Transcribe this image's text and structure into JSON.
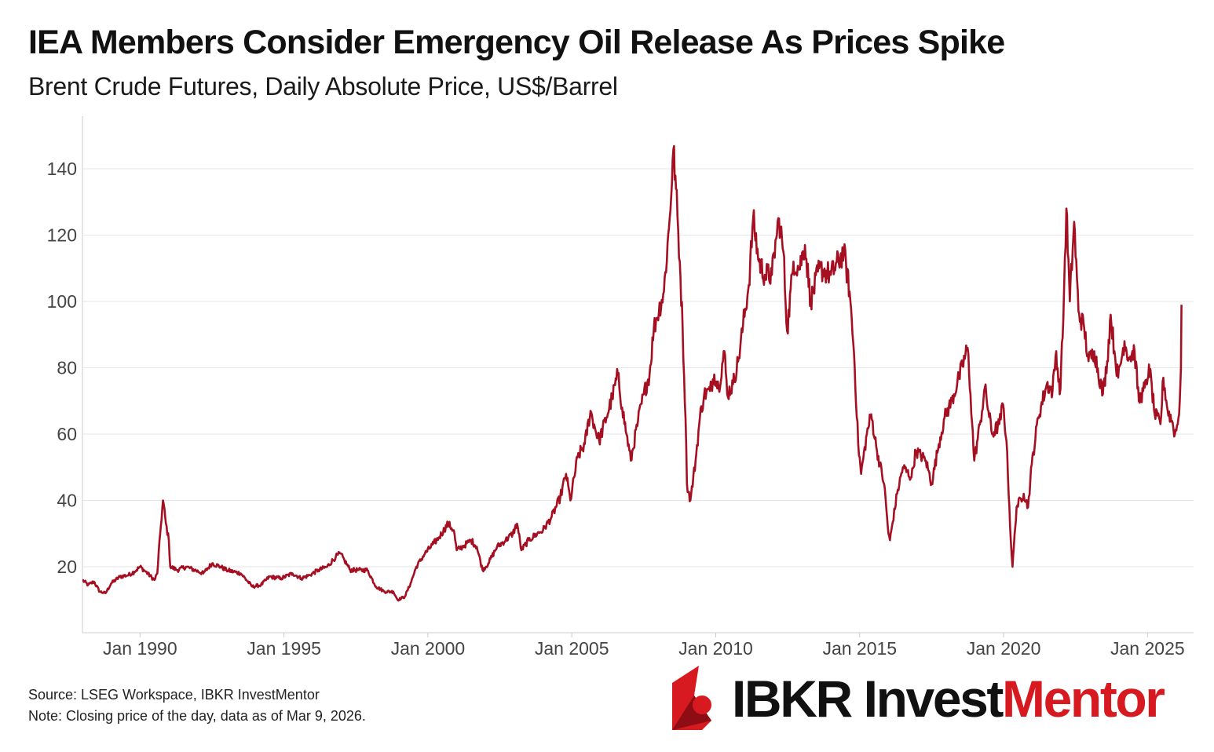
{
  "header": {
    "title": "IEA Members Consider Emergency Oil Release As Prices Spike",
    "subtitle": "Brent Crude Futures, Daily Absolute Price, US$/Barrel"
  },
  "footer": {
    "source": "Source: LSEG Workspace, IBKR InvestMentor",
    "note": "Note: Closing price of the day, data as of Mar 9, 2026."
  },
  "logo": {
    "brand_dark": "IBKR Invest",
    "brand_red": "Mentor"
  },
  "colors": {
    "series": "#a50f22",
    "grid": "#e6e6e6",
    "axis": "#cccccc",
    "brand_red": "#d71920"
  },
  "chart_data": {
    "type": "line",
    "title": "IEA Members Consider Emergency Oil Release As Prices Spike",
    "subtitle": "Brent Crude Futures, Daily Absolute Price, US$/Barrel",
    "xlabel": "",
    "ylabel": "",
    "xlim": [
      1988.0,
      2026.6
    ],
    "ylim": [
      0,
      150
    ],
    "yticks": [
      20,
      40,
      60,
      80,
      100,
      120,
      140
    ],
    "xticks": [
      {
        "x": 1990,
        "label": "Jan 1990"
      },
      {
        "x": 1995,
        "label": "Jan 1995"
      },
      {
        "x": 2000,
        "label": "Jan 2000"
      },
      {
        "x": 2005,
        "label": "Jan 2005"
      },
      {
        "x": 2010,
        "label": "Jan 2010"
      },
      {
        "x": 2015,
        "label": "Jan 2015"
      },
      {
        "x": 2020,
        "label": "Jan 2020"
      },
      {
        "x": 2025,
        "label": "Jan 2025"
      }
    ],
    "grid": true,
    "series": [
      {
        "name": "Brent Crude Futures",
        "points": [
          [
            1988.0,
            16
          ],
          [
            1988.2,
            14.5
          ],
          [
            1988.4,
            15.5
          ],
          [
            1988.6,
            12.5
          ],
          [
            1988.8,
            12
          ],
          [
            1989.0,
            15
          ],
          [
            1989.3,
            17
          ],
          [
            1989.6,
            17.5
          ],
          [
            1989.8,
            18.5
          ],
          [
            1990.0,
            20
          ],
          [
            1990.2,
            18.5
          ],
          [
            1990.5,
            16
          ],
          [
            1990.6,
            18
          ],
          [
            1990.7,
            30
          ],
          [
            1990.8,
            40
          ],
          [
            1990.9,
            33
          ],
          [
            1991.0,
            28
          ],
          [
            1991.05,
            20
          ],
          [
            1991.3,
            19
          ],
          [
            1991.6,
            20
          ],
          [
            1991.9,
            19
          ],
          [
            1992.2,
            18
          ],
          [
            1992.5,
            21
          ],
          [
            1992.8,
            20
          ],
          [
            1993.0,
            19
          ],
          [
            1993.5,
            18
          ],
          [
            1993.9,
            14
          ],
          [
            1994.2,
            14.5
          ],
          [
            1994.5,
            17
          ],
          [
            1994.9,
            16.5
          ],
          [
            1995.3,
            18
          ],
          [
            1995.6,
            16.5
          ],
          [
            1995.9,
            17.5
          ],
          [
            1996.2,
            19
          ],
          [
            1996.5,
            20
          ],
          [
            1996.8,
            23
          ],
          [
            1996.95,
            24
          ],
          [
            1997.1,
            22
          ],
          [
            1997.3,
            19
          ],
          [
            1997.6,
            19
          ],
          [
            1997.9,
            19
          ],
          [
            1998.2,
            14
          ],
          [
            1998.5,
            12.5
          ],
          [
            1998.8,
            12.5
          ],
          [
            1998.95,
            10
          ],
          [
            1999.2,
            11
          ],
          [
            1999.4,
            15
          ],
          [
            1999.6,
            20
          ],
          [
            1999.9,
            24
          ],
          [
            2000.2,
            27
          ],
          [
            2000.4,
            29
          ],
          [
            2000.7,
            33
          ],
          [
            2000.9,
            31
          ],
          [
            2001.0,
            25
          ],
          [
            2001.2,
            26
          ],
          [
            2001.5,
            28
          ],
          [
            2001.7,
            26
          ],
          [
            2001.9,
            19
          ],
          [
            2002.1,
            21
          ],
          [
            2002.4,
            26
          ],
          [
            2002.7,
            28
          ],
          [
            2002.95,
            30
          ],
          [
            2003.1,
            33
          ],
          [
            2003.25,
            25
          ],
          [
            2003.5,
            28
          ],
          [
            2003.8,
            30
          ],
          [
            2004.0,
            31
          ],
          [
            2004.3,
            35
          ],
          [
            2004.6,
            41
          ],
          [
            2004.8,
            48
          ],
          [
            2004.95,
            40
          ],
          [
            2005.2,
            53
          ],
          [
            2005.45,
            57
          ],
          [
            2005.65,
            67
          ],
          [
            2005.8,
            62
          ],
          [
            2005.95,
            58
          ],
          [
            2006.2,
            65
          ],
          [
            2006.4,
            71
          ],
          [
            2006.6,
            78
          ],
          [
            2006.75,
            68
          ],
          [
            2006.9,
            60
          ],
          [
            2007.05,
            52
          ],
          [
            2007.3,
            64
          ],
          [
            2007.5,
            72
          ],
          [
            2007.7,
            78
          ],
          [
            2007.85,
            92
          ],
          [
            2007.95,
            95
          ],
          [
            2008.2,
            103
          ],
          [
            2008.4,
            125
          ],
          [
            2008.53,
            146
          ],
          [
            2008.62,
            134
          ],
          [
            2008.75,
            112
          ],
          [
            2008.85,
            92
          ],
          [
            2008.95,
            65
          ],
          [
            2009.0,
            45
          ],
          [
            2009.12,
            40
          ],
          [
            2009.3,
            52
          ],
          [
            2009.45,
            65
          ],
          [
            2009.6,
            72
          ],
          [
            2009.8,
            73
          ],
          [
            2009.95,
            78
          ],
          [
            2010.1,
            74
          ],
          [
            2010.3,
            85
          ],
          [
            2010.4,
            72
          ],
          [
            2010.6,
            75
          ],
          [
            2010.8,
            83
          ],
          [
            2010.95,
            93
          ],
          [
            2011.15,
            105
          ],
          [
            2011.3,
            125
          ],
          [
            2011.5,
            112
          ],
          [
            2011.7,
            108
          ],
          [
            2011.95,
            108
          ],
          [
            2012.1,
            119
          ],
          [
            2012.2,
            125
          ],
          [
            2012.35,
            115
          ],
          [
            2012.48,
            91
          ],
          [
            2012.7,
            112
          ],
          [
            2012.9,
            110
          ],
          [
            2013.1,
            117
          ],
          [
            2013.3,
            100
          ],
          [
            2013.6,
            110
          ],
          [
            2013.8,
            109
          ],
          [
            2014.0,
            108
          ],
          [
            2014.45,
            115
          ],
          [
            2014.65,
            103
          ],
          [
            2014.8,
            85
          ],
          [
            2014.95,
            57
          ],
          [
            2015.05,
            48
          ],
          [
            2015.25,
            60
          ],
          [
            2015.4,
            66
          ],
          [
            2015.6,
            55
          ],
          [
            2015.85,
            45
          ],
          [
            2016.0,
            30
          ],
          [
            2016.05,
            28
          ],
          [
            2016.3,
            42
          ],
          [
            2016.5,
            50
          ],
          [
            2016.8,
            47
          ],
          [
            2016.95,
            55
          ],
          [
            2017.3,
            52
          ],
          [
            2017.5,
            45
          ],
          [
            2017.75,
            57
          ],
          [
            2017.95,
            65
          ],
          [
            2018.2,
            70
          ],
          [
            2018.45,
            77
          ],
          [
            2018.75,
            86
          ],
          [
            2018.85,
            72
          ],
          [
            2018.98,
            52
          ],
          [
            2019.2,
            64
          ],
          [
            2019.35,
            74
          ],
          [
            2019.6,
            60
          ],
          [
            2019.85,
            63
          ],
          [
            2019.98,
            69
          ],
          [
            2020.1,
            58
          ],
          [
            2020.25,
            28
          ],
          [
            2020.31,
            20
          ],
          [
            2020.45,
            38
          ],
          [
            2020.7,
            42
          ],
          [
            2020.85,
            38
          ],
          [
            2020.98,
            51
          ],
          [
            2021.2,
            65
          ],
          [
            2021.5,
            75
          ],
          [
            2021.7,
            73
          ],
          [
            2021.83,
            85
          ],
          [
            2021.95,
            72
          ],
          [
            2022.05,
            89
          ],
          [
            2022.18,
            128
          ],
          [
            2022.3,
            100
          ],
          [
            2022.45,
            124
          ],
          [
            2022.6,
            97
          ],
          [
            2022.8,
            92
          ],
          [
            2022.95,
            82
          ],
          [
            2023.15,
            85
          ],
          [
            2023.45,
            72
          ],
          [
            2023.6,
            82
          ],
          [
            2023.72,
            96
          ],
          [
            2023.85,
            85
          ],
          [
            2023.98,
            77
          ],
          [
            2024.2,
            88
          ],
          [
            2024.35,
            83
          ],
          [
            2024.55,
            85
          ],
          [
            2024.7,
            70
          ],
          [
            2024.85,
            73
          ],
          [
            2024.98,
            75
          ],
          [
            2025.05,
            81
          ],
          [
            2025.25,
            66
          ],
          [
            2025.45,
            63
          ],
          [
            2025.55,
            77
          ],
          [
            2025.7,
            67
          ],
          [
            2025.85,
            64
          ],
          [
            2025.95,
            60
          ],
          [
            2026.05,
            63
          ],
          [
            2026.12,
            70
          ],
          [
            2026.16,
            80
          ],
          [
            2026.18,
            99
          ]
        ]
      }
    ]
  }
}
